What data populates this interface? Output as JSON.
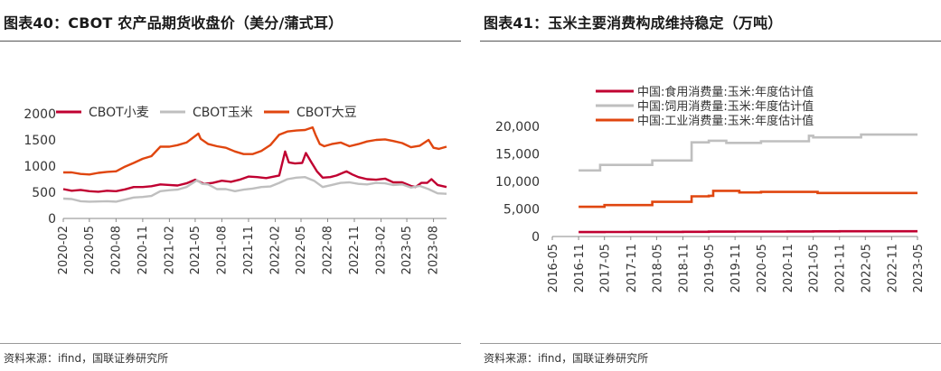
{
  "panels": [
    {
      "title": "图表40：CBOT 农产品期货收盘价（美分/蒲式耳）",
      "source": "资料来源：ifind，国联证券研究所"
    },
    {
      "title": "图表41：玉米主要消费构成维持稳定（万吨）",
      "source": "资料来源：ifind，国联证券研究所"
    }
  ],
  "chart_data": [
    {
      "type": "line",
      "title": "图表40：CBOT 农产品期货收盘价（美分/蒲式耳）",
      "xlabel": "",
      "ylabel": "",
      "ylim": [
        0,
        2000
      ],
      "yticks": [
        "0",
        "500",
        "1000",
        "1500",
        "2000"
      ],
      "xticks": [
        "2020-02",
        "2020-05",
        "2020-08",
        "2020-11",
        "2021-02",
        "2021-05",
        "2021-08",
        "2021-11",
        "2022-02",
        "2022-05",
        "2022-08",
        "2022-11",
        "2023-02",
        "2023-05",
        "2023-08"
      ],
      "xrange": [
        "2020-02-01",
        "2023-09-15"
      ],
      "grid": false,
      "legend": "top",
      "series": [
        {
          "name": "CBOT小麦",
          "color": "#c00031",
          "points": [
            [
              "2020-02-01",
              560
            ],
            [
              "2020-03-01",
              530
            ],
            [
              "2020-04-01",
              545
            ],
            [
              "2020-05-01",
              520
            ],
            [
              "2020-06-01",
              510
            ],
            [
              "2020-07-01",
              530
            ],
            [
              "2020-08-01",
              520
            ],
            [
              "2020-09-01",
              555
            ],
            [
              "2020-10-01",
              600
            ],
            [
              "2020-11-01",
              600
            ],
            [
              "2020-12-01",
              615
            ],
            [
              "2021-01-01",
              650
            ],
            [
              "2021-02-01",
              640
            ],
            [
              "2021-03-01",
              630
            ],
            [
              "2021-04-01",
              670
            ],
            [
              "2021-05-01",
              740
            ],
            [
              "2021-05-20",
              690
            ],
            [
              "2021-06-01",
              660
            ],
            [
              "2021-07-01",
              680
            ],
            [
              "2021-08-01",
              720
            ],
            [
              "2021-09-01",
              700
            ],
            [
              "2021-10-01",
              740
            ],
            [
              "2021-11-01",
              800
            ],
            [
              "2021-12-01",
              790
            ],
            [
              "2022-01-01",
              770
            ],
            [
              "2022-02-15",
              820
            ],
            [
              "2022-03-07",
              1280
            ],
            [
              "2022-03-20",
              1070
            ],
            [
              "2022-04-10",
              1050
            ],
            [
              "2022-05-05",
              1060
            ],
            [
              "2022-05-18",
              1250
            ],
            [
              "2022-06-05",
              1080
            ],
            [
              "2022-06-25",
              900
            ],
            [
              "2022-07-15",
              780
            ],
            [
              "2022-08-10",
              790
            ],
            [
              "2022-09-01",
              820
            ],
            [
              "2022-10-05",
              900
            ],
            [
              "2022-10-25",
              840
            ],
            [
              "2022-11-15",
              790
            ],
            [
              "2022-12-15",
              750
            ],
            [
              "2023-01-15",
              740
            ],
            [
              "2023-02-15",
              760
            ],
            [
              "2023-03-15",
              690
            ],
            [
              "2023-04-15",
              690
            ],
            [
              "2023-05-15",
              620
            ],
            [
              "2023-05-31",
              600
            ],
            [
              "2023-06-20",
              680
            ],
            [
              "2023-07-10",
              680
            ],
            [
              "2023-07-25",
              750
            ],
            [
              "2023-08-15",
              640
            ],
            [
              "2023-09-15",
              600
            ]
          ]
        },
        {
          "name": "CBOT玉米",
          "color": "#bfbfbf",
          "points": [
            [
              "2020-02-01",
              380
            ],
            [
              "2020-03-01",
              370
            ],
            [
              "2020-04-01",
              330
            ],
            [
              "2020-05-01",
              320
            ],
            [
              "2020-06-01",
              325
            ],
            [
              "2020-07-01",
              330
            ],
            [
              "2020-08-01",
              320
            ],
            [
              "2020-09-01",
              360
            ],
            [
              "2020-10-01",
              400
            ],
            [
              "2020-11-01",
              410
            ],
            [
              "2020-12-01",
              430
            ],
            [
              "2021-01-01",
              520
            ],
            [
              "2021-02-01",
              540
            ],
            [
              "2021-03-01",
              550
            ],
            [
              "2021-04-01",
              600
            ],
            [
              "2021-05-07",
              730
            ],
            [
              "2021-05-25",
              660
            ],
            [
              "2021-06-15",
              650
            ],
            [
              "2021-07-15",
              560
            ],
            [
              "2021-08-15",
              560
            ],
            [
              "2021-09-15",
              520
            ],
            [
              "2021-10-15",
              550
            ],
            [
              "2021-11-15",
              570
            ],
            [
              "2021-12-15",
              600
            ],
            [
              "2022-01-15",
              610
            ],
            [
              "2022-02-15",
              680
            ],
            [
              "2022-03-15",
              750
            ],
            [
              "2022-04-15",
              780
            ],
            [
              "2022-05-15",
              790
            ],
            [
              "2022-06-15",
              720
            ],
            [
              "2022-07-15",
              600
            ],
            [
              "2022-08-15",
              640
            ],
            [
              "2022-09-15",
              680
            ],
            [
              "2022-10-15",
              690
            ],
            [
              "2022-11-15",
              660
            ],
            [
              "2022-12-15",
              650
            ],
            [
              "2023-01-15",
              680
            ],
            [
              "2023-02-15",
              670
            ],
            [
              "2023-03-15",
              640
            ],
            [
              "2023-04-15",
              650
            ],
            [
              "2023-05-15",
              590
            ],
            [
              "2023-06-15",
              620
            ],
            [
              "2023-07-15",
              560
            ],
            [
              "2023-08-15",
              480
            ],
            [
              "2023-09-15",
              470
            ]
          ]
        },
        {
          "name": "CBOT大豆",
          "color": "#e0460f",
          "points": [
            [
              "2020-02-01",
              880
            ],
            [
              "2020-03-01",
              880
            ],
            [
              "2020-04-01",
              850
            ],
            [
              "2020-05-01",
              840
            ],
            [
              "2020-06-01",
              870
            ],
            [
              "2020-07-01",
              890
            ],
            [
              "2020-08-01",
              900
            ],
            [
              "2020-09-01",
              990
            ],
            [
              "2020-10-01",
              1060
            ],
            [
              "2020-11-01",
              1140
            ],
            [
              "2020-12-01",
              1190
            ],
            [
              "2021-01-01",
              1370
            ],
            [
              "2021-02-01",
              1370
            ],
            [
              "2021-03-01",
              1400
            ],
            [
              "2021-04-01",
              1450
            ],
            [
              "2021-05-12",
              1620
            ],
            [
              "2021-05-20",
              1520
            ],
            [
              "2021-06-15",
              1420
            ],
            [
              "2021-07-15",
              1380
            ],
            [
              "2021-08-15",
              1350
            ],
            [
              "2021-09-15",
              1280
            ],
            [
              "2021-10-15",
              1230
            ],
            [
              "2021-11-15",
              1230
            ],
            [
              "2021-12-15",
              1290
            ],
            [
              "2022-01-15",
              1400
            ],
            [
              "2022-02-15",
              1600
            ],
            [
              "2022-03-15",
              1660
            ],
            [
              "2022-04-15",
              1680
            ],
            [
              "2022-05-15",
              1690
            ],
            [
              "2022-06-10",
              1740
            ],
            [
              "2022-06-20",
              1600
            ],
            [
              "2022-07-05",
              1420
            ],
            [
              "2022-07-20",
              1380
            ],
            [
              "2022-08-15",
              1420
            ],
            [
              "2022-09-15",
              1450
            ],
            [
              "2022-10-15",
              1380
            ],
            [
              "2022-11-15",
              1420
            ],
            [
              "2022-12-15",
              1470
            ],
            [
              "2023-01-15",
              1500
            ],
            [
              "2023-02-15",
              1510
            ],
            [
              "2023-03-15",
              1480
            ],
            [
              "2023-04-15",
              1440
            ],
            [
              "2023-05-15",
              1360
            ],
            [
              "2023-06-15",
              1390
            ],
            [
              "2023-07-15",
              1500
            ],
            [
              "2023-08-01",
              1350
            ],
            [
              "2023-08-20",
              1330
            ],
            [
              "2023-09-15",
              1370
            ]
          ]
        }
      ]
    },
    {
      "type": "line",
      "title": "图表41：玉米主要消费构成维持稳定（万吨）",
      "xlabel": "",
      "ylabel": "",
      "ylim": [
        0,
        20000
      ],
      "yticks": [
        "0",
        "5,000",
        "10,000",
        "15,000",
        "20,000"
      ],
      "xticks": [
        "2016-05",
        "2016-11",
        "2017-05",
        "2017-11",
        "2018-05",
        "2018-11",
        "2019-05",
        "2019-11",
        "2020-05",
        "2020-11",
        "2021-05",
        "2021-11",
        "2022-05",
        "2022-11",
        "2023-05"
      ],
      "xrange": [
        "2016-05",
        "2023-05"
      ],
      "grid": false,
      "legend": "top-left",
      "series": [
        {
          "name": "中国:食用消费量:玉米:年度估计值",
          "color": "#c00031",
          "style": "step",
          "points": [
            [
              "2016-11",
              800
            ],
            [
              "2017-05",
              820
            ],
            [
              "2017-11",
              830
            ],
            [
              "2018-05",
              840
            ],
            [
              "2018-11",
              850
            ],
            [
              "2019-05",
              880
            ],
            [
              "2019-11",
              900
            ],
            [
              "2020-05",
              900
            ],
            [
              "2020-11",
              920
            ],
            [
              "2021-05",
              940
            ],
            [
              "2021-11",
              950
            ],
            [
              "2022-05",
              950
            ],
            [
              "2022-11",
              950
            ],
            [
              "2023-05",
              950
            ]
          ]
        },
        {
          "name": "中国:饲用消费量:玉米:年度估计值",
          "color": "#bfbfbf",
          "style": "step",
          "points": [
            [
              "2016-11",
              12000
            ],
            [
              "2017-03",
              12000
            ],
            [
              "2017-04",
              13000
            ],
            [
              "2018-03",
              13000
            ],
            [
              "2018-04",
              13800
            ],
            [
              "2018-12",
              13800
            ],
            [
              "2019-01",
              17100
            ],
            [
              "2019-05",
              17400
            ],
            [
              "2019-08",
              17400
            ],
            [
              "2019-09",
              17000
            ],
            [
              "2020-04",
              17000
            ],
            [
              "2020-05",
              17300
            ],
            [
              "2021-03",
              17300
            ],
            [
              "2021-04",
              18300
            ],
            [
              "2021-05",
              18000
            ],
            [
              "2022-03",
              18000
            ],
            [
              "2022-04",
              18500
            ],
            [
              "2023-05",
              18500
            ]
          ]
        },
        {
          "name": "中国:工业消费量:玉米:年度估计值",
          "color": "#e0460f",
          "style": "step",
          "points": [
            [
              "2016-11",
              5400
            ],
            [
              "2017-04",
              5400
            ],
            [
              "2017-05",
              5700
            ],
            [
              "2018-03",
              5700
            ],
            [
              "2018-04",
              6300
            ],
            [
              "2018-12",
              6300
            ],
            [
              "2019-01",
              7300
            ],
            [
              "2019-05",
              7400
            ],
            [
              "2019-06",
              8300
            ],
            [
              "2019-11",
              8300
            ],
            [
              "2019-12",
              8000
            ],
            [
              "2020-04",
              8000
            ],
            [
              "2020-05",
              8100
            ],
            [
              "2021-05",
              8100
            ],
            [
              "2021-06",
              7900
            ],
            [
              "2023-05",
              7900
            ]
          ]
        }
      ]
    }
  ]
}
